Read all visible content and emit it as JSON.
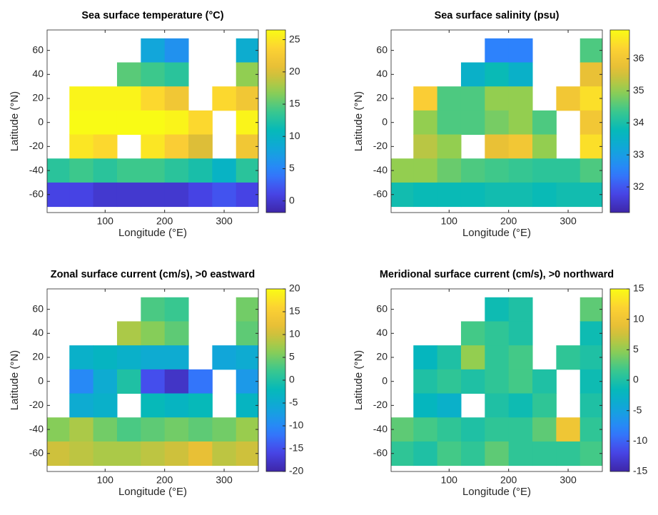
{
  "chart_data": [
    {
      "type": "heatmap",
      "title": "Sea surface temperature (°C)",
      "x_label": "Longitude (°E)",
      "y_label": "Latitude (°N)",
      "colormap": "parula",
      "x": [
        20,
        60,
        100,
        140,
        180,
        220,
        260,
        300,
        340
      ],
      "y": [
        60,
        40,
        20,
        0,
        -20,
        -40,
        -60
      ],
      "values": [
        [
          null,
          null,
          null,
          null,
          8,
          6,
          null,
          null,
          9
        ],
        [
          null,
          null,
          null,
          15,
          14,
          13,
          null,
          null,
          17
        ],
        [
          null,
          26,
          26,
          26,
          24,
          22,
          null,
          24,
          22
        ],
        [
          null,
          27,
          28,
          29,
          28,
          26,
          24,
          null,
          26
        ],
        [
          null,
          25,
          24,
          null,
          25,
          23,
          20,
          null,
          22
        ],
        [
          13,
          14,
          13,
          14,
          14,
          13,
          12,
          10,
          13
        ],
        [
          1,
          1,
          0,
          0,
          0,
          0,
          1,
          2,
          1
        ]
      ],
      "xlim": [
        2.5,
        357.5
      ],
      "ylim": [
        -75,
        77
      ],
      "xticks": [
        100,
        200,
        300
      ],
      "yticks": [
        -60,
        -40,
        -20,
        0,
        20,
        40,
        60
      ],
      "clim": [
        -1.8,
        26.5
      ],
      "cticks": [
        0,
        5,
        10,
        15,
        20,
        25
      ]
    },
    {
      "type": "heatmap",
      "title": "Sea surface salinity (psu)",
      "x_label": "Longitude (°E)",
      "y_label": "Latitude (°N)",
      "colormap": "parula",
      "x": [
        20,
        60,
        100,
        140,
        180,
        220,
        260,
        300,
        340
      ],
      "y": [
        60,
        40,
        20,
        0,
        -20,
        -40,
        -60
      ],
      "values": [
        [
          null,
          null,
          null,
          null,
          32.5,
          32.5,
          null,
          null,
          34.5
        ],
        [
          null,
          null,
          null,
          33.5,
          33.8,
          33.5,
          null,
          null,
          35.8
        ],
        [
          null,
          36.2,
          34.5,
          34.5,
          35,
          35,
          null,
          36,
          36.5
        ],
        [
          null,
          35,
          34.5,
          34.5,
          34.8,
          35,
          34.5,
          null,
          36
        ],
        [
          null,
          35.3,
          35,
          null,
          35.8,
          36,
          35,
          null,
          36.5
        ],
        [
          35,
          35,
          34.7,
          34.5,
          34.4,
          34.3,
          34.2,
          34.2,
          34.5
        ],
        [
          33.9,
          33.8,
          33.8,
          33.8,
          33.9,
          33.9,
          33.8,
          33.9,
          33.9
        ]
      ],
      "xlim": [
        2.5,
        357.5
      ],
      "ylim": [
        -75,
        77
      ],
      "xticks": [
        100,
        200,
        300
      ],
      "yticks": [
        -60,
        -40,
        -20,
        0,
        20,
        40,
        60
      ],
      "clim": [
        31.2,
        36.9
      ],
      "cticks": [
        32,
        33,
        34,
        35,
        36
      ]
    },
    {
      "type": "heatmap",
      "title": "Zonal surface current (cm/s), >0 eastward",
      "x_label": "Longitude (°E)",
      "y_label": "Latitude (°N)",
      "colormap": "parula",
      "x": [
        20,
        60,
        100,
        140,
        180,
        220,
        260,
        300,
        340
      ],
      "y": [
        60,
        40,
        20,
        0,
        -20,
        -40,
        -60
      ],
      "values": [
        [
          null,
          null,
          null,
          null,
          3,
          2,
          null,
          null,
          5
        ],
        [
          null,
          null,
          null,
          8,
          6,
          4,
          null,
          null,
          4
        ],
        [
          null,
          -4,
          -3,
          -4,
          -5,
          -5,
          null,
          -6,
          -5
        ],
        [
          null,
          -10,
          -5,
          0,
          -15,
          -18,
          -12,
          null,
          -8
        ],
        [
          null,
          -5,
          -4,
          null,
          -2,
          -3,
          -2,
          null,
          -3
        ],
        [
          6,
          8,
          5,
          3,
          4,
          5,
          4,
          5,
          7
        ],
        [
          10,
          9,
          8,
          8,
          9,
          10,
          12,
          9,
          10
        ]
      ],
      "xlim": [
        2.5,
        357.5
      ],
      "ylim": [
        -75,
        77
      ],
      "xticks": [
        100,
        200,
        300
      ],
      "yticks": [
        -60,
        -40,
        -20,
        0,
        20,
        40,
        60
      ],
      "clim": [
        -20,
        20
      ],
      "cticks": [
        -20,
        -15,
        -10,
        -5,
        0,
        5,
        10,
        15,
        20
      ]
    },
    {
      "type": "heatmap",
      "title": "Meridional surface current (cm/s), >0 northward",
      "x_label": "Longitude (°E)",
      "y_label": "Latitude (°N)",
      "colormap": "parula",
      "x": [
        20,
        60,
        100,
        140,
        180,
        220,
        260,
        300,
        340
      ],
      "y": [
        60,
        40,
        20,
        0,
        -20,
        -40,
        -60
      ],
      "values": [
        [
          null,
          null,
          null,
          null,
          -1,
          0,
          null,
          null,
          3
        ],
        [
          null,
          null,
          null,
          2,
          1,
          0,
          null,
          null,
          -1
        ],
        [
          null,
          -2,
          0,
          5,
          1,
          2,
          null,
          1,
          0
        ],
        [
          null,
          0,
          1,
          0,
          1,
          2,
          0,
          null,
          -1
        ],
        [
          null,
          -2,
          -3,
          null,
          0,
          -1,
          1,
          null,
          0
        ],
        [
          3,
          2,
          1,
          0,
          1,
          1,
          3,
          10,
          1
        ],
        [
          1,
          0,
          2,
          1,
          3,
          1,
          1,
          1,
          2
        ]
      ],
      "xlim": [
        2.5,
        357.5
      ],
      "ylim": [
        -75,
        77
      ],
      "xticks": [
        100,
        200,
        300
      ],
      "yticks": [
        -60,
        -40,
        -20,
        0,
        20,
        40,
        60
      ],
      "clim": [
        -15,
        15
      ],
      "cticks": [
        -15,
        -10,
        -5,
        0,
        5,
        10,
        15
      ]
    }
  ]
}
